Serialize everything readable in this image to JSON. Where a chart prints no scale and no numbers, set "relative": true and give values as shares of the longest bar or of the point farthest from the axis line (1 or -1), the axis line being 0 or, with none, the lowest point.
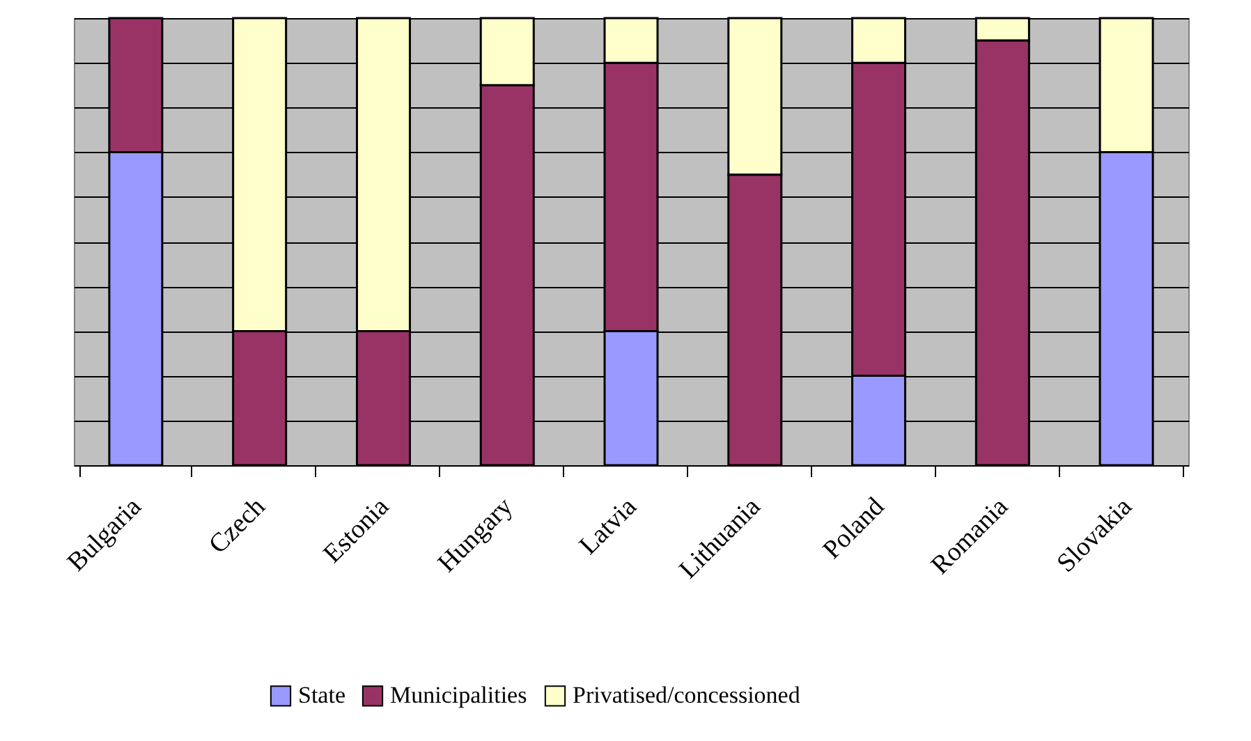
{
  "chart_data": {
    "type": "bar",
    "stacked": true,
    "relative": true,
    "grid": "y",
    "legend": "bottom",
    "categories": [
      "Bulgaria",
      "Czech",
      "Estonia",
      "Hungary",
      "Latvia",
      "Lithuania",
      "Poland",
      "Romania",
      "Slovakia"
    ],
    "series": [
      {
        "name": "State",
        "color": "#9999ff",
        "values": [
          0.7,
          0,
          0,
          0,
          0.3,
          0,
          0.2,
          0,
          0.7
        ]
      },
      {
        "name": "Municipalities",
        "color": "#993366",
        "values": [
          0.3,
          0.3,
          0.3,
          0.85,
          0.6,
          0.65,
          0.7,
          0.95,
          0
        ]
      },
      {
        "name": "Privatised/concessioned",
        "color": "#ffffcc",
        "values": [
          0,
          0.7,
          0.7,
          0.15,
          0.1,
          0.35,
          0.1,
          0.05,
          0.3
        ]
      }
    ]
  }
}
